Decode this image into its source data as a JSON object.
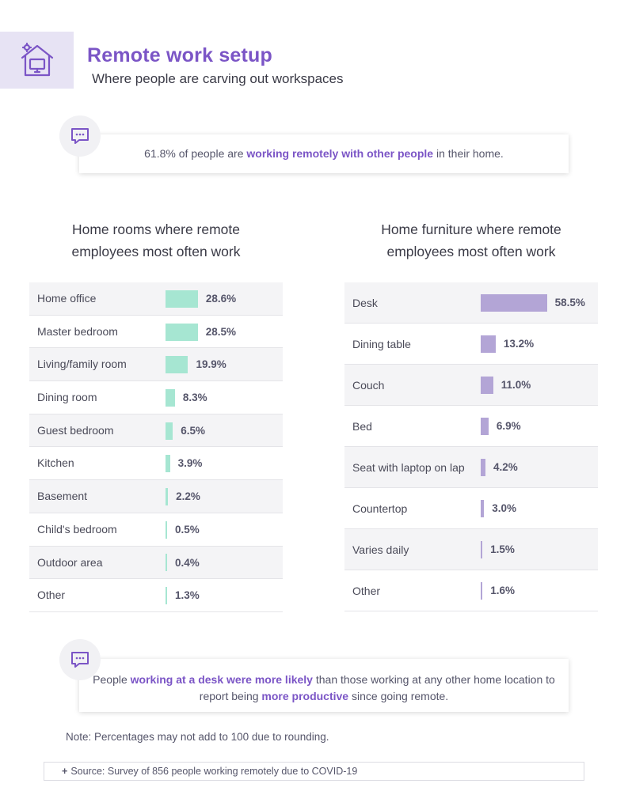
{
  "header": {
    "title": "Remote work setup",
    "subtitle": "Where people are carving out workspaces",
    "icon": "home-office-icon"
  },
  "callout_top": {
    "before": "61.8% of people are ",
    "highlight": "working remotely with other people",
    "after": " in their home."
  },
  "callout_bottom": {
    "part1": "People ",
    "highlight1": "working at a desk were more likely",
    "part2": " than those working at any other home location to report being ",
    "highlight2": "more productive",
    "part3": " since going remote."
  },
  "chart_data": [
    {
      "type": "bar",
      "orientation": "horizontal",
      "title_lines": [
        "Home rooms where remote",
        "employees most often work"
      ],
      "categories": [
        "Home office",
        "Master bedroom",
        "Living/family room",
        "Dining room",
        "Guest bedroom",
        "Kitchen",
        "Basement",
        "Child's bedroom",
        "Outdoor area",
        "Other"
      ],
      "values": [
        28.6,
        28.5,
        19.9,
        8.3,
        6.5,
        3.9,
        2.2,
        0.5,
        0.4,
        1.3
      ],
      "value_labels": [
        "28.6%",
        "28.5%",
        "19.9%",
        "8.3%",
        "6.5%",
        "3.9%",
        "2.2%",
        "0.5%",
        "0.4%",
        "1.3%"
      ],
      "color": "#a6e6d2"
    },
    {
      "type": "bar",
      "orientation": "horizontal",
      "title_lines": [
        "Home furniture where remote",
        "employees most often work"
      ],
      "categories": [
        "Desk",
        "Dining table",
        "Couch",
        "Bed",
        "Seat with laptop on lap",
        "Countertop",
        "Varies daily",
        "Other"
      ],
      "values": [
        58.5,
        13.2,
        11.0,
        6.9,
        4.2,
        3.0,
        1.5,
        1.6
      ],
      "value_labels": [
        "58.5%",
        "13.2%",
        "11.0%",
        "6.9%",
        "4.2%",
        "3.0%",
        "1.5%",
        "1.6%"
      ],
      "color": "#b3a5d6"
    }
  ],
  "note": "Note: Percentages may not add to 100 due to rounding.",
  "source": {
    "plus": "+",
    "text": "Source: Survey of 856 people working remotely due to COVID-19"
  },
  "colors": {
    "accent": "#7b55c6",
    "header_box": "#e7e3f4",
    "rooms_bar": "#a6e6d2",
    "furniture_bar": "#b3a5d6"
  }
}
